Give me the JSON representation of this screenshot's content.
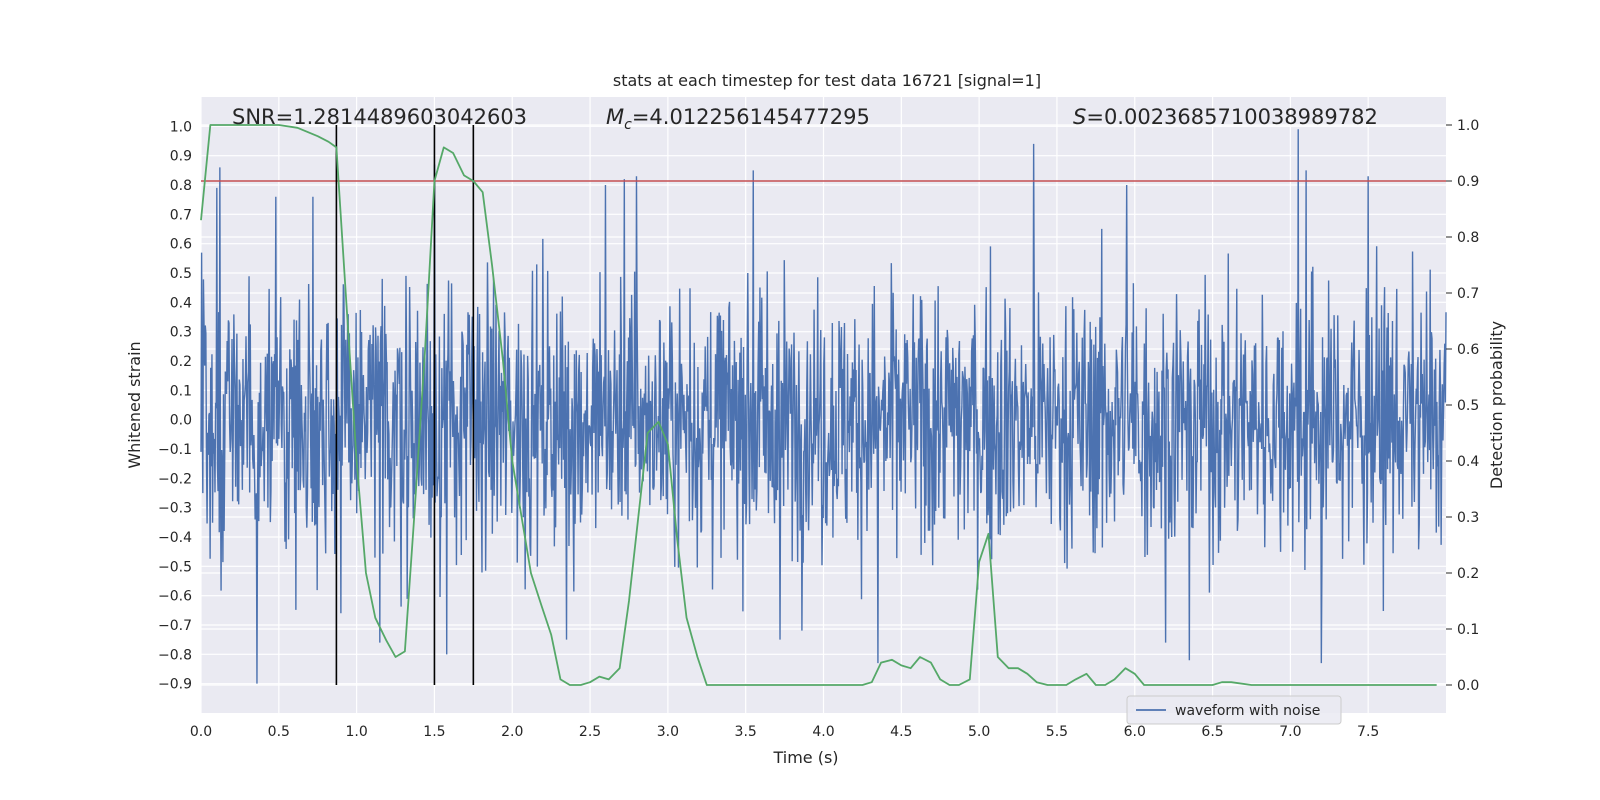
{
  "colors": {
    "background": "#ffffff",
    "plot_area": "#eaeaf2",
    "grid": "#ffffff",
    "waveform": "#4c72b0",
    "probability": "#55a868",
    "threshold": "#c44e52",
    "markers": "#000000",
    "legend_border": "#cccccc"
  },
  "chart_data": {
    "type": "line",
    "title": "stats at each timestep for test data 16721 [signal=1]",
    "xlabel": "Time (s)",
    "ylabel_left": "Whitened strain",
    "ylabel_right": "Detection probability",
    "xlim": [
      0.0,
      8.0
    ],
    "ylim_left": [
      -1.0,
      1.1
    ],
    "ylim_right": [
      -0.05,
      1.05
    ],
    "x_ticks": [
      "0.0",
      "0.5",
      "1.0",
      "1.5",
      "2.0",
      "2.5",
      "3.0",
      "3.5",
      "4.0",
      "4.5",
      "5.0",
      "5.5",
      "6.0",
      "6.5",
      "7.0",
      "7.5"
    ],
    "y_ticks_left": [
      "−0.9",
      "−0.8",
      "−0.7",
      "−0.6",
      "−0.5",
      "−0.4",
      "−0.3",
      "−0.2",
      "−0.1",
      "0.0",
      "0.1",
      "0.2",
      "0.3",
      "0.4",
      "0.5",
      "0.6",
      "0.7",
      "0.8",
      "0.9",
      "1.0"
    ],
    "y_ticks_right": [
      "0.0",
      "0.1",
      "0.2",
      "0.3",
      "0.4",
      "0.5",
      "0.6",
      "0.7",
      "0.8",
      "0.9",
      "1.0"
    ],
    "grid": true,
    "annotations": {
      "snr": "SNR=1.2814489603042603",
      "mc": "=4.012256145477295",
      "s": "=0.0023685710038989782"
    },
    "legend": {
      "entries": [
        "waveform with noise"
      ],
      "placement": "lower-right"
    },
    "threshold_probability": 0.9,
    "vertical_markers_x": [
      0.87,
      1.5,
      1.75
    ],
    "waveform": {
      "name": "waveform with noise",
      "x_range": [
        0.0,
        8.0
      ],
      "n_samples": 2048,
      "typical_envelope": [
        -0.45,
        0.45
      ],
      "extremes": [
        {
          "x": 0.1,
          "y": 0.79
        },
        {
          "x": 0.12,
          "y": 0.86
        },
        {
          "x": 0.36,
          "y": -0.9
        },
        {
          "x": 0.48,
          "y": 0.76
        },
        {
          "x": 0.72,
          "y": 0.76
        },
        {
          "x": 0.9,
          "y": -0.66
        },
        {
          "x": 1.15,
          "y": -0.76
        },
        {
          "x": 1.5,
          "y": 0.87
        },
        {
          "x": 1.58,
          "y": -0.8
        },
        {
          "x": 2.35,
          "y": -0.75
        },
        {
          "x": 2.6,
          "y": 0.8
        },
        {
          "x": 2.72,
          "y": 0.82
        },
        {
          "x": 2.8,
          "y": 0.83
        },
        {
          "x": 3.55,
          "y": 0.85
        },
        {
          "x": 3.72,
          "y": -0.75
        },
        {
          "x": 4.35,
          "y": -0.83
        },
        {
          "x": 5.35,
          "y": 0.94
        },
        {
          "x": 5.95,
          "y": 0.8
        },
        {
          "x": 6.2,
          "y": -0.76
        },
        {
          "x": 6.35,
          "y": -0.82
        },
        {
          "x": 7.05,
          "y": 0.99
        },
        {
          "x": 7.1,
          "y": 0.85
        },
        {
          "x": 7.2,
          "y": -0.83
        },
        {
          "x": 7.5,
          "y": 0.83
        }
      ]
    },
    "detection_probability": {
      "x": [
        0.0,
        0.06,
        0.12,
        0.25,
        0.5,
        0.62,
        0.75,
        0.82,
        0.87,
        0.93,
        1.0,
        1.06,
        1.12,
        1.19,
        1.25,
        1.31,
        1.37,
        1.44,
        1.5,
        1.56,
        1.62,
        1.69,
        1.75,
        1.81,
        1.87,
        1.94,
        2.0,
        2.06,
        2.12,
        2.19,
        2.25,
        2.31,
        2.37,
        2.44,
        2.5,
        2.56,
        2.62,
        2.69,
        2.75,
        2.81,
        2.87,
        2.94,
        3.0,
        3.06,
        3.12,
        3.19,
        3.25,
        3.37,
        3.5,
        3.56,
        3.62,
        3.75,
        3.87,
        4.0,
        4.12,
        4.25,
        4.31,
        4.37,
        4.44,
        4.5,
        4.56,
        4.62,
        4.69,
        4.75,
        4.81,
        4.87,
        4.94,
        5.0,
        5.06,
        5.12,
        5.19,
        5.25,
        5.31,
        5.37,
        5.44,
        5.5,
        5.56,
        5.62,
        5.69,
        5.75,
        5.81,
        5.87,
        5.94,
        6.0,
        6.06,
        6.12,
        6.25,
        6.37,
        6.5,
        6.56,
        6.62,
        6.75,
        6.87,
        7.0,
        7.12,
        7.25,
        7.37,
        7.5,
        7.62,
        7.75,
        7.87,
        7.94
      ],
      "y": [
        0.83,
        1.0,
        1.0,
        1.0,
        1.0,
        0.995,
        0.98,
        0.97,
        0.96,
        0.7,
        0.4,
        0.2,
        0.12,
        0.08,
        0.05,
        0.06,
        0.3,
        0.6,
        0.9,
        0.96,
        0.95,
        0.91,
        0.9,
        0.88,
        0.75,
        0.58,
        0.4,
        0.3,
        0.2,
        0.14,
        0.09,
        0.01,
        0.0,
        0.0,
        0.005,
        0.015,
        0.01,
        0.03,
        0.15,
        0.3,
        0.45,
        0.47,
        0.43,
        0.26,
        0.12,
        0.05,
        0.0,
        0.0,
        0.0,
        0.0,
        0.0,
        0.0,
        0.0,
        0.0,
        0.0,
        0.0,
        0.005,
        0.04,
        0.045,
        0.035,
        0.03,
        0.05,
        0.04,
        0.01,
        0.0,
        0.0,
        0.01,
        0.22,
        0.27,
        0.05,
        0.03,
        0.03,
        0.02,
        0.005,
        0.0,
        0.0,
        0.0,
        0.01,
        0.02,
        0.0,
        0.0,
        0.01,
        0.03,
        0.02,
        0.0,
        0.0,
        0.0,
        0.0,
        0.0,
        0.005,
        0.005,
        0.0,
        0.0,
        0.0,
        0.0,
        0.0,
        0.0,
        0.0,
        0.0,
        0.0,
        0.0,
        0.0
      ]
    }
  }
}
